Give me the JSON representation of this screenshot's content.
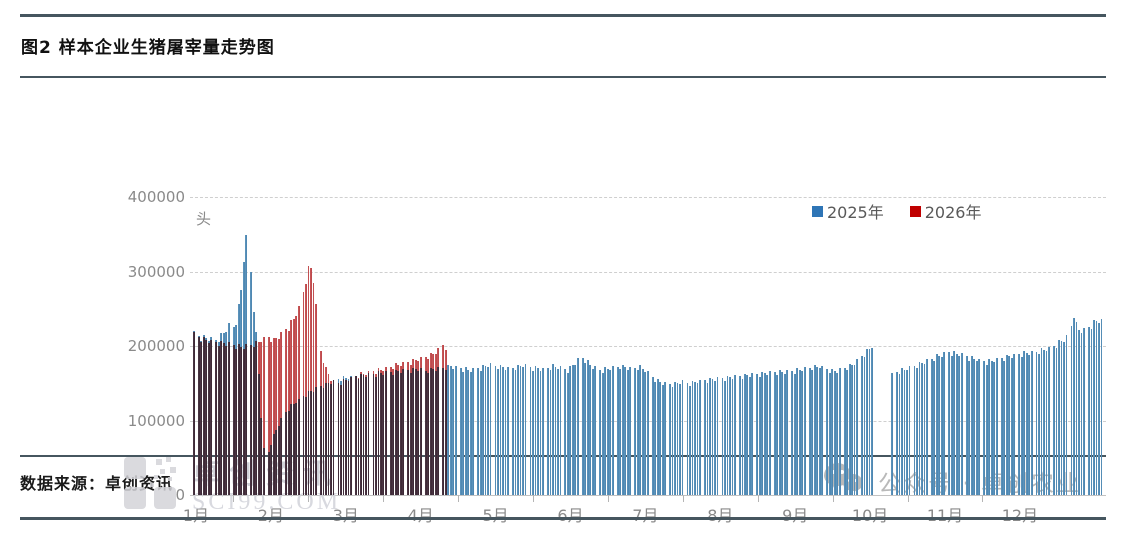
{
  "header": {
    "title": "图2 样本企业生猪屠宰量走势图"
  },
  "footer": {
    "source_label": "数据来源：卓创资讯",
    "wechat_label": "公众号 · 卓创农业"
  },
  "watermark": {
    "brand": "卓创资讯",
    "site": "SCI99.COM"
  },
  "chart_data": {
    "type": "bar",
    "title": "样本企业生猪屠宰量走势图",
    "ylabel": "头",
    "ylim": [
      0,
      400000
    ],
    "yticks": [
      400000,
      300000,
      200000,
      100000,
      0
    ],
    "x_unit": "day-of-year",
    "x_tick_labels": [
      "1月",
      "2月",
      "3月",
      "4月",
      "5月",
      "6月",
      "7月",
      "8月",
      "9月",
      "10月",
      "11月",
      "12月"
    ],
    "grid": "horizontal-dashed",
    "legend_position": "top-right",
    "weekly_texture": [
      1.012,
      0.988,
      1.0,
      0.976,
      1.016,
      1.0,
      0.985
    ],
    "series": [
      {
        "name": "2025年",
        "color": "#2e75b6",
        "bar_edge_color": "#1f5c8c",
        "bar_mid_color": "#8abde0",
        "domain": [
          1,
          365
        ],
        "gap_day_ranges": [
          [
            274,
            280
          ]
        ],
        "anchors_day_value": [
          [
            1,
            218000
          ],
          [
            4,
            212000
          ],
          [
            7,
            210000
          ],
          [
            10,
            208000
          ],
          [
            12,
            214000
          ],
          [
            14,
            222000
          ],
          [
            15,
            228000
          ],
          [
            16,
            220000
          ],
          [
            17,
            226000
          ],
          [
            18,
            234000
          ],
          [
            19,
            252000
          ],
          [
            20,
            275000
          ],
          [
            21,
            318000
          ],
          [
            22,
            345000
          ],
          [
            23,
            336000
          ],
          [
            24,
            300000
          ],
          [
            25,
            252000
          ],
          [
            26,
            215000
          ],
          [
            27,
            162000
          ],
          [
            28,
            105000
          ],
          [
            29,
            62000
          ],
          [
            30,
            48000
          ],
          [
            31,
            58000
          ],
          [
            33,
            80000
          ],
          [
            36,
            102000
          ],
          [
            40,
            120000
          ],
          [
            45,
            133000
          ],
          [
            50,
            143000
          ],
          [
            55,
            150000
          ],
          [
            59,
            156000
          ],
          [
            63,
            158000
          ],
          [
            68,
            160000
          ],
          [
            74,
            163000
          ],
          [
            80,
            165000
          ],
          [
            86,
            167000
          ],
          [
            90,
            169000
          ],
          [
            94,
            167000
          ],
          [
            99,
            170000
          ],
          [
            104,
            173000
          ],
          [
            108,
            170000
          ],
          [
            112,
            168000
          ],
          [
            116,
            171000
          ],
          [
            120,
            175000
          ],
          [
            124,
            172000
          ],
          [
            128,
            170000
          ],
          [
            133,
            174000
          ],
          [
            137,
            171000
          ],
          [
            141,
            169000
          ],
          [
            145,
            173000
          ],
          [
            149,
            170000
          ],
          [
            151,
            168000
          ],
          [
            154,
            177000
          ],
          [
            156,
            186000
          ],
          [
            158,
            181000
          ],
          [
            161,
            172000
          ],
          [
            164,
            168000
          ],
          [
            168,
            170000
          ],
          [
            172,
            173000
          ],
          [
            176,
            170000
          ],
          [
            180,
            172000
          ],
          [
            183,
            165000
          ],
          [
            186,
            155000
          ],
          [
            189,
            150000
          ],
          [
            193,
            148000
          ],
          [
            197,
            152000
          ],
          [
            200,
            150000
          ],
          [
            204,
            153000
          ],
          [
            208,
            155000
          ],
          [
            212,
            157000
          ],
          [
            216,
            158000
          ],
          [
            221,
            160000
          ],
          [
            226,
            162000
          ],
          [
            231,
            164000
          ],
          [
            236,
            165000
          ],
          [
            240,
            166000
          ],
          [
            244,
            168000
          ],
          [
            248,
            171000
          ],
          [
            252,
            173000
          ],
          [
            255,
            169000
          ],
          [
            258,
            166000
          ],
          [
            262,
            170000
          ],
          [
            265,
            175000
          ],
          [
            268,
            183000
          ],
          [
            270,
            190000
          ],
          [
            272,
            196000
          ],
          [
            273,
            200000
          ],
          [
            281,
            162000
          ],
          [
            284,
            166000
          ],
          [
            288,
            171000
          ],
          [
            292,
            176000
          ],
          [
            296,
            182000
          ],
          [
            300,
            187000
          ],
          [
            304,
            192000
          ],
          [
            307,
            190000
          ],
          [
            310,
            187000
          ],
          [
            313,
            184000
          ],
          [
            316,
            181000
          ],
          [
            319,
            179000
          ],
          [
            322,
            181000
          ],
          [
            325,
            184000
          ],
          [
            328,
            186000
          ],
          [
            331,
            188000
          ],
          [
            334,
            190000
          ],
          [
            338,
            192000
          ],
          [
            341,
            194000
          ],
          [
            344,
            197000
          ],
          [
            347,
            202000
          ],
          [
            350,
            209000
          ],
          [
            352,
            215000
          ],
          [
            353,
            227000
          ],
          [
            354,
            243000
          ],
          [
            355,
            229000
          ],
          [
            356,
            221000
          ],
          [
            358,
            222000
          ],
          [
            360,
            226000
          ],
          [
            362,
            231000
          ],
          [
            364,
            235000
          ],
          [
            365,
            233000
          ]
        ]
      },
      {
        "name": "2026年",
        "color": "#c00000",
        "bar_edge_color": "#9c1b23",
        "bar_mid_color": "#e8837f",
        "domain": [
          1,
          102
        ],
        "gap_day_ranges": [],
        "anchors_day_value": [
          [
            1,
            216000
          ],
          [
            4,
            210000
          ],
          [
            8,
            206000
          ],
          [
            12,
            204000
          ],
          [
            16,
            202000
          ],
          [
            20,
            199000
          ],
          [
            23,
            201000
          ],
          [
            26,
            204000
          ],
          [
            28,
            208000
          ],
          [
            31,
            212000
          ],
          [
            33,
            208000
          ],
          [
            35,
            213000
          ],
          [
            37,
            219000
          ],
          [
            39,
            226000
          ],
          [
            41,
            236000
          ],
          [
            43,
            251000
          ],
          [
            45,
            272000
          ],
          [
            46,
            290000
          ],
          [
            47,
            303000
          ],
          [
            48,
            305000
          ],
          [
            49,
            289000
          ],
          [
            50,
            254000
          ],
          [
            51,
            221000
          ],
          [
            52,
            194000
          ],
          [
            54,
            169000
          ],
          [
            56,
            156000
          ],
          [
            58,
            150000
          ],
          [
            61,
            153000
          ],
          [
            64,
            157000
          ],
          [
            67,
            161000
          ],
          [
            70,
            164000
          ],
          [
            74,
            167000
          ],
          [
            78,
            170000
          ],
          [
            82,
            174000
          ],
          [
            86,
            177000
          ],
          [
            90,
            181000
          ],
          [
            93,
            184000
          ],
          [
            96,
            188000
          ],
          [
            98,
            192000
          ],
          [
            100,
            197000
          ],
          [
            101,
            202000
          ],
          [
            102,
            199000
          ]
        ]
      }
    ]
  }
}
